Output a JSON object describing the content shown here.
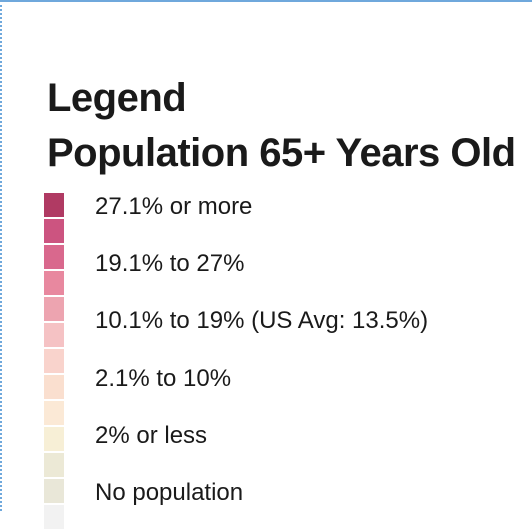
{
  "legend": {
    "title": "Legend",
    "subtitle": "Population 65+ Years Old",
    "swatches": [
      "#b03a63",
      "#cc5480",
      "#d9688d",
      "#e8889f",
      "#eda4b0",
      "#f5c2c4",
      "#f9d3cc",
      "#fadfcf",
      "#fbe9d6",
      "#f7efd6",
      "#ece9d6",
      "#e9e7d8",
      "#f2f2f2"
    ],
    "items": [
      {
        "label": "27.1% or more",
        "color": "#b03a63"
      },
      {
        "label": "19.1% to 27%",
        "color": "#d9688d"
      },
      {
        "label": "10.1% to 19% (US Avg: 13.5%)",
        "color": "#eda4b0"
      },
      {
        "label": "2.1% to 10%",
        "color": "#f9d3cc"
      },
      {
        "label": "2% or less",
        "color": "#f7efd6"
      },
      {
        "label": "No population",
        "color": "#f2f2f2"
      }
    ]
  }
}
